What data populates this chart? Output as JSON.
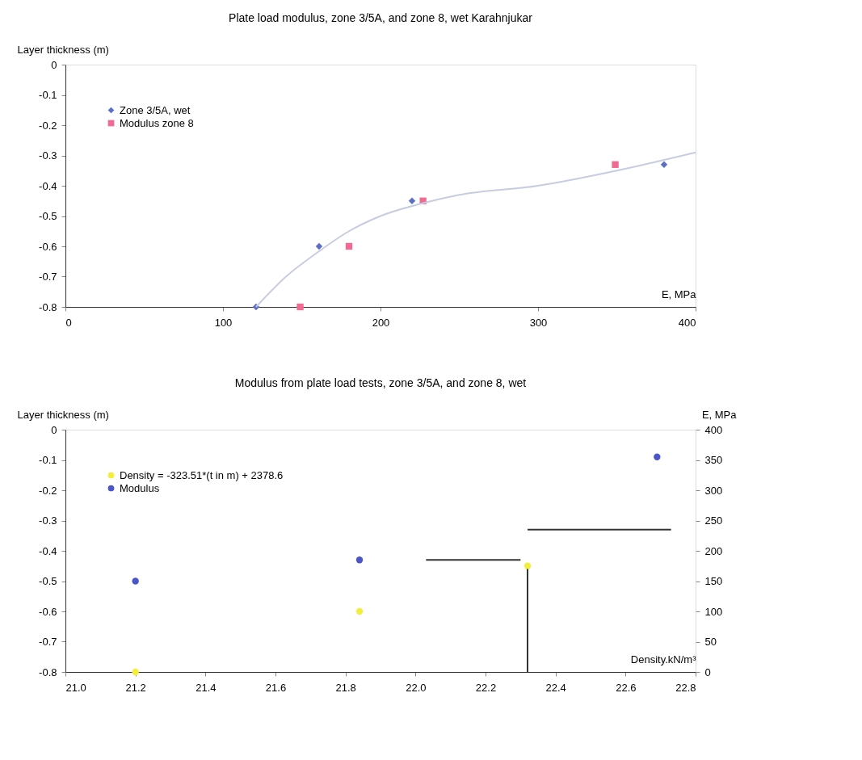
{
  "chart_data": [
    {
      "type": "scatter",
      "title": "Plate load modulus, zone 3/5A, and zone 8, wet Karahnjukar",
      "xlabel": "E, MPa",
      "ylabel": "Layer thickness (m)",
      "xlim": [
        0,
        400
      ],
      "xticks": [
        0,
        100,
        200,
        300,
        400
      ],
      "ylim": [
        -0.8,
        0
      ],
      "yticks": [
        0,
        -0.1,
        -0.2,
        -0.3,
        -0.4,
        -0.5,
        -0.6,
        -0.7,
        -0.8
      ],
      "grid": false,
      "legend": "top left",
      "series": [
        {
          "name": "Zone 3/5A, wet",
          "color": "#5b6fc8",
          "marker": "diamond",
          "x": [
            121,
            161,
            220,
            380
          ],
          "values": [
            -0.8,
            -0.6,
            -0.45,
            -0.33
          ]
        },
        {
          "name": "Modulus zone 8",
          "color": "#f06a92",
          "marker": "square",
          "x": [
            149,
            180,
            227,
            349
          ],
          "values": [
            -0.8,
            -0.6,
            -0.45,
            -0.33
          ]
        },
        {
          "type": "line",
          "color": "#c8cce0",
          "line_style": "solid",
          "x": [
            121,
            140,
            160,
            180,
            200,
            225,
            250,
            300,
            350,
            400
          ],
          "values": [
            -0.8,
            -0.7,
            -0.62,
            -0.55,
            -0.5,
            -0.46,
            -0.43,
            -0.4,
            -0.35,
            -0.29
          ]
        }
      ]
    },
    {
      "type": "scatter",
      "title": "Modulus from plate load tests, zone 3/5A, and zone 8, wet",
      "xlabel": "Density.kN/m³",
      "ylabel": "Layer thickness (m)",
      "y2label": "E, MPa",
      "xlim": [
        21.0,
        22.8
      ],
      "xticks": [
        {
          "value": 21.0,
          "label": "21.0"
        },
        21.2,
        21.4,
        21.6,
        21.8,
        {
          "value": 22.0,
          "label": "22.0"
        },
        22.2,
        22.4,
        22.6,
        22.8
      ],
      "ylim": [
        -0.8,
        0
      ],
      "yticks": [
        0,
        -0.1,
        -0.2,
        -0.3,
        -0.4,
        -0.5,
        -0.6,
        -0.7,
        -0.8
      ],
      "y2lim": [
        0,
        400
      ],
      "y2ticks": [
        0,
        50,
        100,
        150,
        200,
        250,
        300,
        350,
        400
      ],
      "grid": false,
      "legend": "top left",
      "series": [
        {
          "name": "Density = -323.51*(t in m) + 2378.6",
          "color": "#f2ee3a",
          "marker": "circle",
          "x": [
            21.2,
            21.84,
            22.32
          ],
          "values": [
            -0.8,
            -0.6,
            -0.45
          ]
        },
        {
          "name": "Modulus",
          "color": "#4a56c8",
          "marker": "circle",
          "axis": "y2",
          "x": [
            21.2,
            21.84,
            22.69
          ],
          "values": [
            150,
            185,
            355
          ]
        },
        {
          "type": "line",
          "color": "#333333",
          "line_style": "solid",
          "x": [
            22.32,
            22.32
          ],
          "values": [
            -0.8,
            -0.46
          ]
        },
        {
          "type": "line",
          "color": "#333333",
          "line_style": "solid",
          "x": [
            22.03,
            22.3
          ],
          "values": [
            -0.43,
            -0.43
          ]
        },
        {
          "type": "line",
          "color": "#333333",
          "line_style": "solid",
          "x": [
            22.32,
            22.73
          ],
          "values": [
            -0.33,
            -0.33
          ]
        }
      ]
    }
  ]
}
